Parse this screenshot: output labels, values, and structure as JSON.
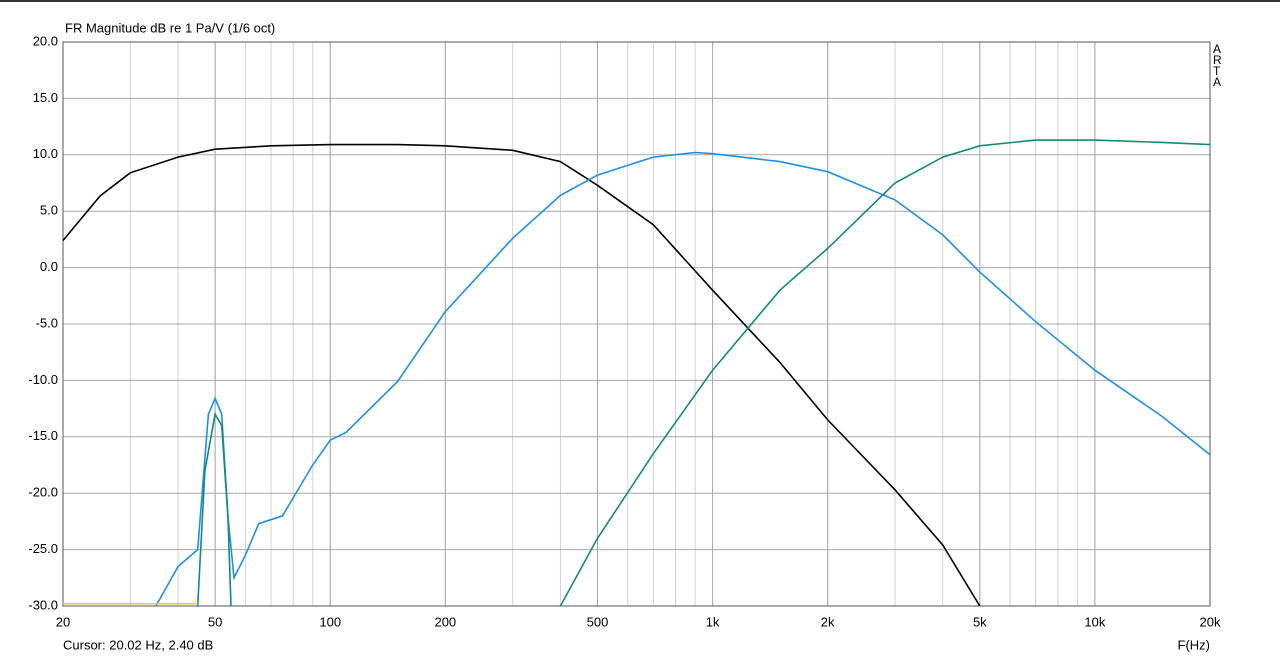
{
  "chart_data": {
    "type": "line",
    "title": "FR Magnitude dB re 1 Pa/V (1/6 oct)",
    "x_label": "F(Hz)",
    "side_label": "ARTA",
    "cursor": "Cursor: 20.02 Hz, 2.40 dB",
    "x_scale": "log",
    "grid": true,
    "xlim": [
      20,
      20000
    ],
    "ylim": [
      -30,
      20
    ],
    "xticks": [
      20,
      50,
      100,
      200,
      500,
      {
        "value": 1000,
        "label": "1k"
      },
      {
        "value": 2000,
        "label": "2k"
      },
      {
        "value": 5000,
        "label": "5k"
      },
      {
        "value": 10000,
        "label": "10k"
      },
      {
        "value": 20000,
        "label": "20k"
      }
    ],
    "yticks": [
      {
        "value": -30,
        "label": "-30.0"
      },
      {
        "value": -25,
        "label": "-25.0"
      },
      {
        "value": -20,
        "label": "-20.0"
      },
      {
        "value": -15,
        "label": "-15.0"
      },
      {
        "value": -10,
        "label": "-10.0"
      },
      {
        "value": -5,
        "label": "-5.0"
      },
      {
        "value": 0,
        "label": "0.0"
      },
      {
        "value": 5,
        "label": "5.0"
      },
      {
        "value": 10,
        "label": "10.0"
      },
      {
        "value": 15,
        "label": "15.0"
      },
      {
        "value": 20,
        "label": "20.0"
      }
    ],
    "series": [
      {
        "color": "#000000",
        "x": [
          20,
          25,
          30,
          40,
          50,
          70,
          100,
          150,
          200,
          300,
          400,
          500,
          700,
          1000,
          1500,
          2000,
          3000,
          4000,
          5000
        ],
        "values": [
          2.4,
          6.35,
          8.4,
          9.8,
          10.5,
          10.8,
          10.9,
          10.9,
          10.8,
          10.4,
          9.4,
          7.3,
          3.8,
          -2.0,
          -8.4,
          -13.5,
          -19.7,
          -24.6,
          -30
        ]
      },
      {
        "color": "#1e8fe6",
        "x": [
          35,
          40,
          45,
          48,
          50,
          52,
          54,
          56,
          60,
          65,
          75,
          90,
          100,
          110,
          150,
          200,
          300,
          400,
          500,
          700,
          900,
          1000,
          1500,
          2000,
          3000,
          4000,
          5000,
          7000,
          10000,
          15000,
          20000
        ],
        "values": [
          -30,
          -26.5,
          -25,
          -13,
          -11.6,
          -13,
          -22,
          -27.5,
          -25.5,
          -22.7,
          -22,
          -17.5,
          -15.3,
          -14.6,
          -10.1,
          -3.9,
          2.6,
          6.4,
          8.2,
          9.8,
          10.2,
          10.1,
          9.4,
          8.5,
          6.0,
          2.9,
          -0.4,
          -4.8,
          -9.1,
          -13.2,
          -16.6
        ]
      },
      {
        "color": "#138a7a",
        "x": [
          45,
          47,
          50,
          52,
          54,
          55,
          null,
          400,
          500,
          700,
          1000,
          1500,
          2000,
          3000,
          4000,
          5000,
          7000,
          10000,
          15000,
          20000
        ],
        "values": [
          -30,
          -18,
          -13,
          -14,
          -22,
          -30,
          null,
          -30,
          -24,
          -16.5,
          -9.1,
          -2.0,
          1.7,
          7.5,
          9.8,
          10.8,
          11.3,
          11.3,
          11.1,
          10.9
        ]
      },
      {
        "color": "#d4d43a",
        "x": [
          20,
          45
        ],
        "values": [
          -29.8,
          -29.8
        ]
      }
    ]
  }
}
